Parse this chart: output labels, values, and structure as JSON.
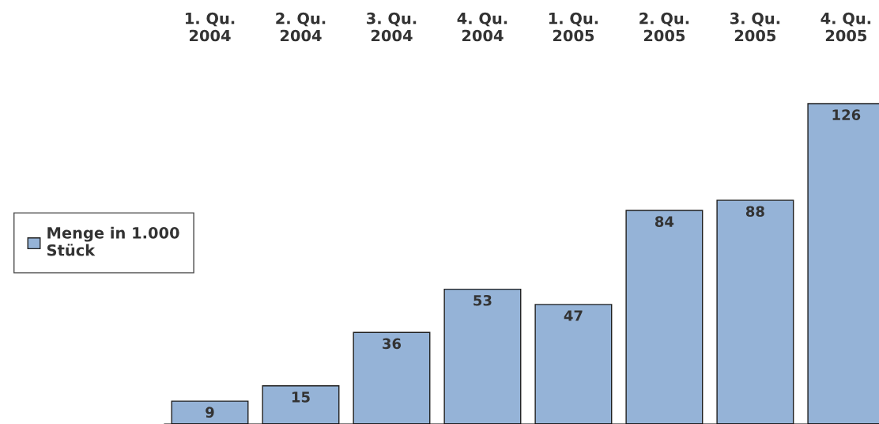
{
  "chart_data": {
    "type": "bar",
    "categories": [
      "1. Qu.\n2004",
      "2. Qu.\n2004",
      "3. Qu.\n2004",
      "4. Qu.\n2004",
      "1. Qu.\n2005",
      "2. Qu.\n2005",
      "3. Qu.\n2005",
      "4. Qu.\n2005"
    ],
    "series": [
      {
        "name": "Menge in 1.000\nStück",
        "color": "#95b3d7",
        "values": [
          9,
          15,
          36,
          53,
          47,
          84,
          88,
          126
        ]
      }
    ],
    "data_labels": true,
    "legend": "left",
    "grid": false,
    "relative": false
  }
}
